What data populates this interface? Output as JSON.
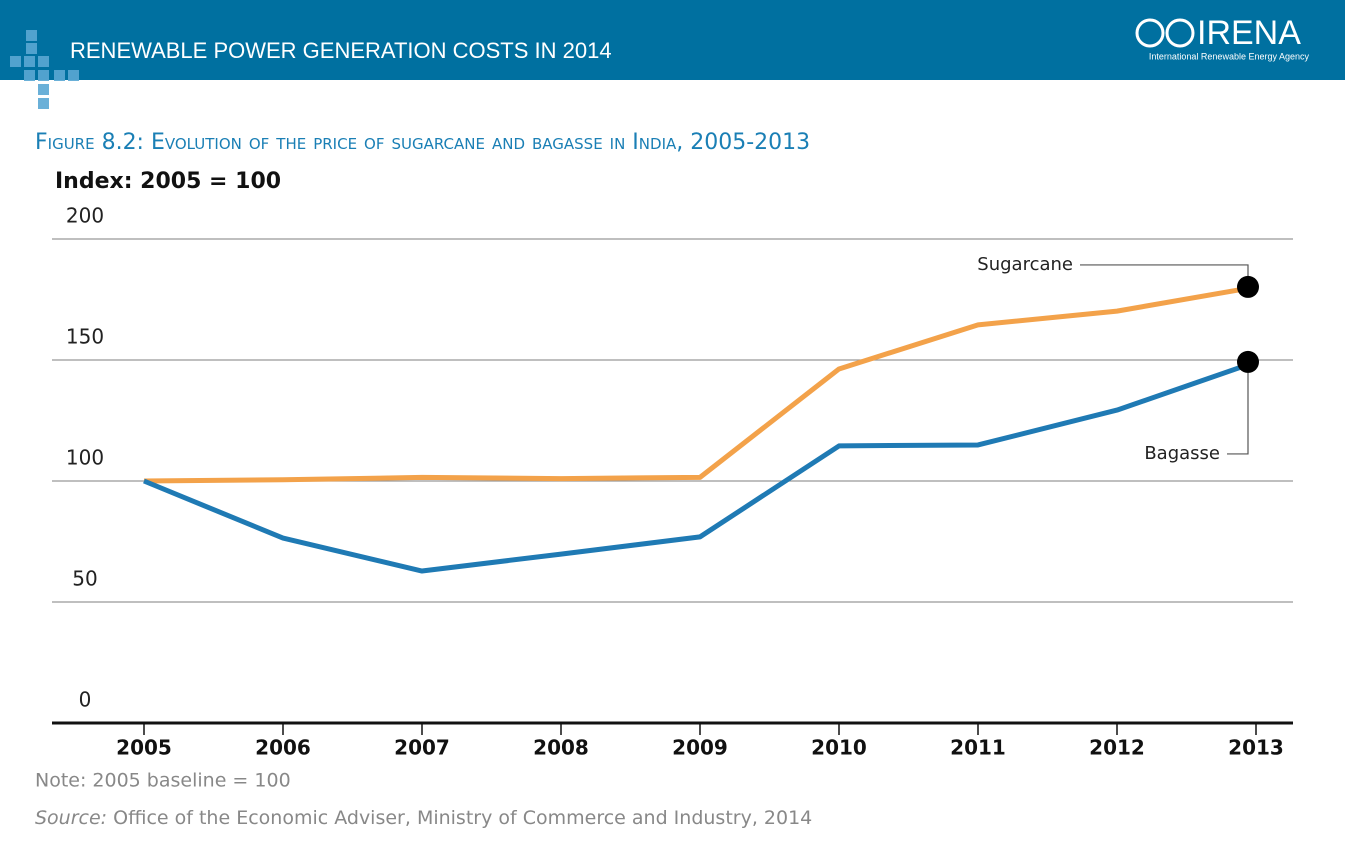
{
  "header": {
    "title": "RENEWABLE POWER GENERATION COSTS IN 2014",
    "logo": "IRENA",
    "logo_subtitle": "International Renewable Energy Agency"
  },
  "chart_data": {
    "type": "line",
    "title": "Figure 8.2: Evolution of the price of sugarcane and bagasse in India, 2005-2013",
    "y_label": "Index: 2005 = 100",
    "categories": [
      "2005",
      "2006",
      "2007",
      "2008",
      "2009",
      "2010",
      "2011",
      "2012",
      "2013"
    ],
    "series": [
      {
        "name": "Sugarcane",
        "color": "#f3a24a",
        "values": [
          100,
          100.5,
          101.5,
          101,
          101.5,
          146.3,
          164.5,
          170.2,
          180.2
        ]
      },
      {
        "name": "Bagasse",
        "color": "#1f7ab4",
        "values": [
          100,
          76.4,
          62.8,
          69.8,
          76.9,
          114.5,
          114.9,
          129.3,
          149.2
        ]
      }
    ],
    "ylim": [
      0,
      200
    ],
    "yticks": [
      0,
      50,
      100,
      150,
      200
    ],
    "grid": true,
    "note": "Note: 2005 baseline = 100",
    "source_label": "Source:",
    "source_text": "Office of the Economic Adviser, Ministry of Commerce and Industry, 2014"
  }
}
